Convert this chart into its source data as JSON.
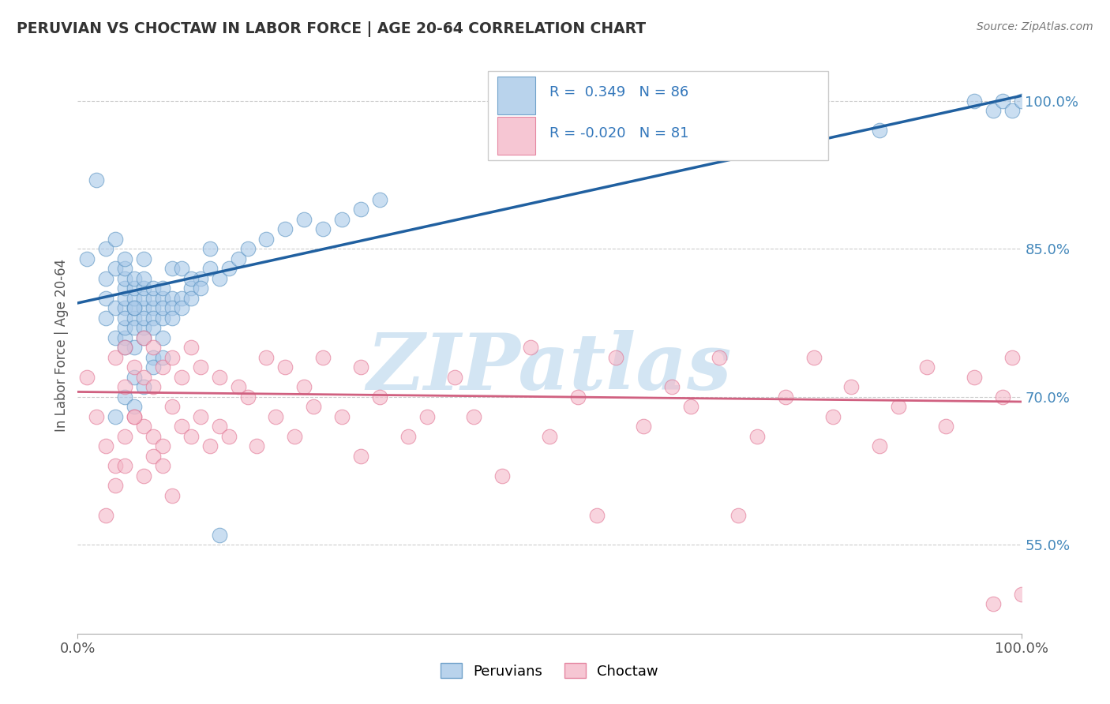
{
  "title": "PERUVIAN VS CHOCTAW IN LABOR FORCE | AGE 20-64 CORRELATION CHART",
  "source_text": "Source: ZipAtlas.com",
  "ylabel": "In Labor Force | Age 20-64",
  "xlim": [
    0.0,
    1.0
  ],
  "ylim": [
    0.46,
    1.045
  ],
  "yticks": [
    0.55,
    0.7,
    0.85,
    1.0
  ],
  "ytick_labels": [
    "55.0%",
    "70.0%",
    "85.0%",
    "100.0%"
  ],
  "xticks": [
    0.0,
    1.0
  ],
  "xtick_labels": [
    "0.0%",
    "100.0%"
  ],
  "blue_R": 0.349,
  "blue_N": 86,
  "pink_R": -0.02,
  "pink_N": 81,
  "blue_color": "#a8c8e8",
  "pink_color": "#f4b8c8",
  "blue_edge_color": "#5590c0",
  "pink_edge_color": "#e07090",
  "blue_line_color": "#2060a0",
  "pink_line_color": "#d06080",
  "watermark": "ZIPatlas",
  "watermark_color": "#c8dff0",
  "legend_blue_label": "Peruvians",
  "legend_pink_label": "Choctaw",
  "background_color": "#ffffff",
  "grid_color": "#cccccc",
  "title_color": "#333333",
  "ytick_color": "#4488bb",
  "blue_scatter_x": [
    0.01,
    0.02,
    0.03,
    0.03,
    0.03,
    0.03,
    0.04,
    0.04,
    0.04,
    0.04,
    0.05,
    0.05,
    0.05,
    0.05,
    0.05,
    0.05,
    0.05,
    0.05,
    0.05,
    0.06,
    0.06,
    0.06,
    0.06,
    0.06,
    0.06,
    0.06,
    0.07,
    0.07,
    0.07,
    0.07,
    0.07,
    0.07,
    0.07,
    0.08,
    0.08,
    0.08,
    0.08,
    0.08,
    0.09,
    0.09,
    0.09,
    0.09,
    0.1,
    0.1,
    0.1,
    0.11,
    0.11,
    0.12,
    0.12,
    0.13,
    0.14,
    0.15,
    0.16,
    0.17,
    0.18,
    0.2,
    0.22,
    0.24,
    0.26,
    0.28,
    0.3,
    0.32,
    0.15,
    0.1,
    0.07,
    0.06,
    0.05,
    0.08,
    0.09,
    0.11,
    0.12,
    0.13,
    0.14,
    0.06,
    0.07,
    0.08,
    0.09,
    0.05,
    0.04,
    0.06,
    0.95,
    0.97,
    0.98,
    0.99,
    1.0,
    0.85
  ],
  "blue_scatter_y": [
    0.84,
    0.92,
    0.82,
    0.78,
    0.85,
    0.8,
    0.76,
    0.79,
    0.83,
    0.86,
    0.79,
    0.8,
    0.81,
    0.82,
    0.83,
    0.76,
    0.77,
    0.78,
    0.84,
    0.78,
    0.79,
    0.8,
    0.81,
    0.82,
    0.77,
    0.75,
    0.79,
    0.8,
    0.81,
    0.77,
    0.78,
    0.76,
    0.82,
    0.79,
    0.8,
    0.81,
    0.78,
    0.77,
    0.8,
    0.81,
    0.78,
    0.79,
    0.8,
    0.79,
    0.78,
    0.8,
    0.79,
    0.81,
    0.8,
    0.82,
    0.83,
    0.82,
    0.83,
    0.84,
    0.85,
    0.86,
    0.87,
    0.88,
    0.87,
    0.88,
    0.89,
    0.9,
    0.56,
    0.83,
    0.84,
    0.79,
    0.75,
    0.74,
    0.76,
    0.83,
    0.82,
    0.81,
    0.85,
    0.72,
    0.71,
    0.73,
    0.74,
    0.7,
    0.68,
    0.69,
    1.0,
    0.99,
    1.0,
    0.99,
    1.0,
    0.97
  ],
  "pink_scatter_x": [
    0.01,
    0.02,
    0.03,
    0.04,
    0.04,
    0.05,
    0.05,
    0.05,
    0.06,
    0.06,
    0.07,
    0.07,
    0.07,
    0.08,
    0.08,
    0.08,
    0.09,
    0.09,
    0.1,
    0.1,
    0.11,
    0.11,
    0.12,
    0.12,
    0.13,
    0.13,
    0.14,
    0.15,
    0.15,
    0.16,
    0.17,
    0.18,
    0.19,
    0.2,
    0.21,
    0.22,
    0.23,
    0.24,
    0.25,
    0.26,
    0.28,
    0.3,
    0.3,
    0.32,
    0.35,
    0.37,
    0.4,
    0.42,
    0.45,
    0.48,
    0.5,
    0.53,
    0.55,
    0.57,
    0.6,
    0.63,
    0.65,
    0.68,
    0.7,
    0.72,
    0.75,
    0.78,
    0.8,
    0.82,
    0.85,
    0.87,
    0.9,
    0.92,
    0.95,
    0.97,
    0.98,
    0.99,
    1.0,
    0.07,
    0.08,
    0.09,
    0.1,
    0.06,
    0.05,
    0.04,
    0.03
  ],
  "pink_scatter_y": [
    0.72,
    0.68,
    0.65,
    0.63,
    0.74,
    0.66,
    0.71,
    0.75,
    0.68,
    0.73,
    0.67,
    0.72,
    0.76,
    0.66,
    0.71,
    0.75,
    0.65,
    0.73,
    0.69,
    0.74,
    0.67,
    0.72,
    0.66,
    0.75,
    0.68,
    0.73,
    0.65,
    0.67,
    0.72,
    0.66,
    0.71,
    0.7,
    0.65,
    0.74,
    0.68,
    0.73,
    0.66,
    0.71,
    0.69,
    0.74,
    0.68,
    0.64,
    0.73,
    0.7,
    0.66,
    0.68,
    0.72,
    0.68,
    0.62,
    0.75,
    0.66,
    0.7,
    0.58,
    0.74,
    0.67,
    0.71,
    0.69,
    0.74,
    0.58,
    0.66,
    0.7,
    0.74,
    0.68,
    0.71,
    0.65,
    0.69,
    0.73,
    0.67,
    0.72,
    0.49,
    0.7,
    0.74,
    0.5,
    0.62,
    0.64,
    0.63,
    0.6,
    0.68,
    0.63,
    0.61,
    0.58
  ],
  "blue_line_x0": 0.0,
  "blue_line_x1": 1.0,
  "blue_line_y0": 0.795,
  "blue_line_y1": 1.005,
  "pink_line_x0": 0.0,
  "pink_line_x1": 1.0,
  "pink_line_y0": 0.705,
  "pink_line_y1": 0.695
}
